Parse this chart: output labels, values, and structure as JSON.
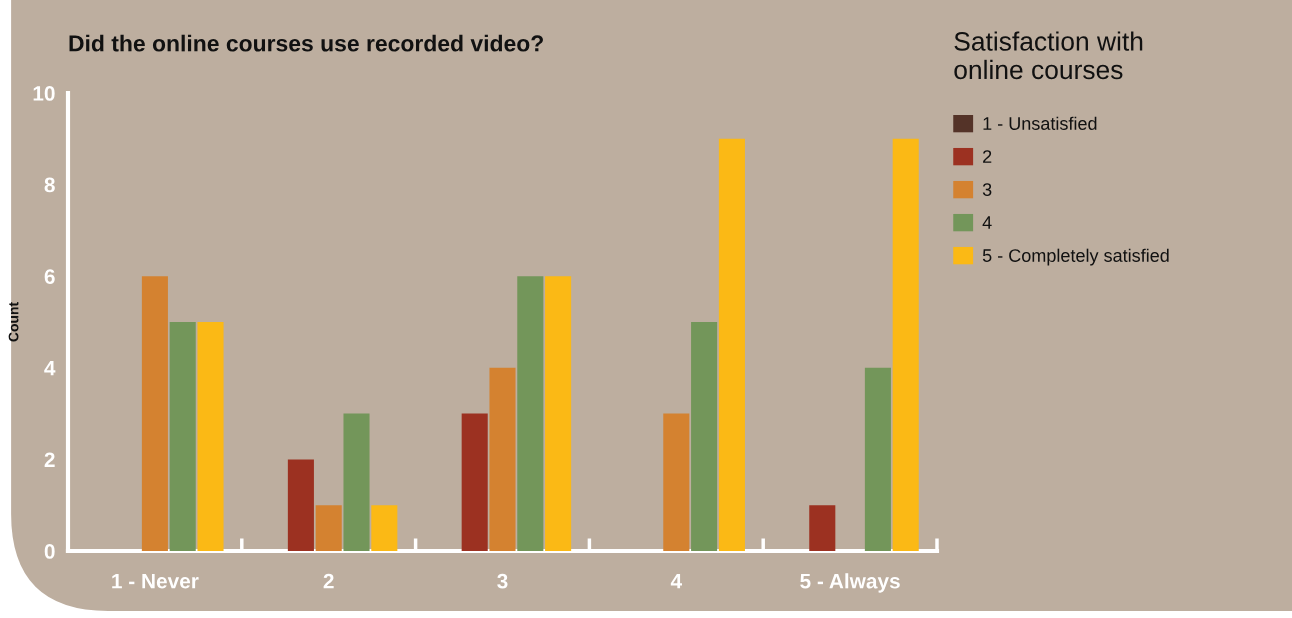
{
  "chart_data": {
    "type": "bar",
    "title": "Did the online courses use recorded video?",
    "ylabel": "Count",
    "legend_title": "Satisfaction with\nonline courses",
    "categories": [
      "1 - Never",
      "2",
      "3",
      "4",
      "5 - Always"
    ],
    "series": [
      {
        "name": "1 - Unsatisfied",
        "color": "#543328",
        "values": [
          0,
          0,
          0,
          0,
          0
        ]
      },
      {
        "name": "2",
        "color": "#9c3121",
        "values": [
          0,
          2,
          3,
          0,
          1
        ]
      },
      {
        "name": "3",
        "color": "#d48230",
        "values": [
          6,
          1,
          4,
          3,
          0
        ]
      },
      {
        "name": "4",
        "color": "#73965a",
        "values": [
          5,
          3,
          6,
          5,
          4
        ]
      },
      {
        "name": "5 - Completely satisfied",
        "color": "#fbb915",
        "values": [
          5,
          1,
          6,
          9,
          9
        ]
      }
    ],
    "ylim": [
      0,
      10
    ],
    "yticks": [
      0,
      2,
      4,
      6,
      8,
      10
    ],
    "grid": false,
    "legend": "top right"
  }
}
